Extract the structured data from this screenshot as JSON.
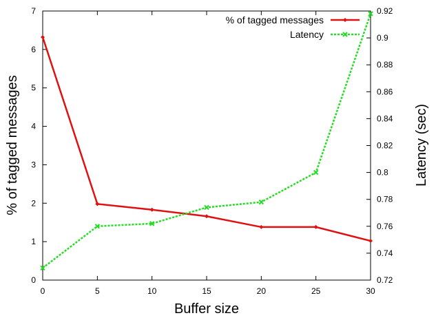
{
  "chart_data": {
    "type": "line",
    "title": "",
    "xlabel": "Buffer size",
    "ylabel": "% of tagged messages",
    "y2label": "Latency (sec)",
    "xlim": [
      0,
      30
    ],
    "ylim": [
      0,
      7
    ],
    "y2lim": [
      0.72,
      0.92
    ],
    "x_ticks": [
      "0",
      "5",
      "10",
      "15",
      "20",
      "25",
      "30"
    ],
    "y_ticks": [
      "0",
      "1",
      "2",
      "3",
      "4",
      "5",
      "6",
      "7"
    ],
    "y2_ticks": [
      "0.72",
      "0.74",
      "0.76",
      "0.78",
      "0.8",
      "0.82",
      "0.84",
      "0.86",
      "0.88",
      "0.9",
      "0.92"
    ],
    "grid": false,
    "legend_position": "top-right",
    "x": [
      0,
      5,
      10,
      15,
      20,
      25,
      30
    ],
    "series": [
      {
        "name": "% of tagged messages",
        "axis": "left",
        "color": "#e01010",
        "marker": "diamond",
        "line": "solid",
        "values": [
          6.32,
          1.98,
          1.83,
          1.66,
          1.38,
          1.38,
          1.02
        ]
      },
      {
        "name": "Latency",
        "axis": "right",
        "color": "#22dd22",
        "marker": "x",
        "line": "dashed",
        "values": [
          0.729,
          0.76,
          0.762,
          0.774,
          0.778,
          0.8,
          0.918
        ]
      }
    ]
  }
}
